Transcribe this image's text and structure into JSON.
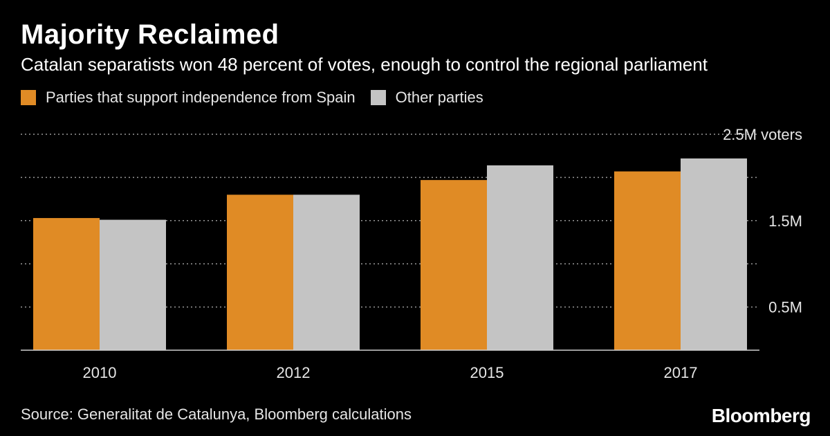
{
  "header": {
    "title": "Majority Reclaimed",
    "subtitle": "Catalan separatists won 48 percent of votes, enough to control the regional parliament"
  },
  "legend": {
    "items": [
      {
        "label": "Parties that support independence from Spain",
        "color": "#e08b25"
      },
      {
        "label": "Other parties",
        "color": "#c4c4c4"
      }
    ]
  },
  "chart_data": {
    "type": "bar",
    "title": "Majority Reclaimed",
    "subtitle": "Catalan separatists won 48 percent of votes, enough to control the regional parliament",
    "categories": [
      "2010",
      "2012",
      "2015",
      "2017"
    ],
    "series": [
      {
        "name": "Parties that support independence from Spain",
        "color": "#e08b25",
        "values": [
          1.53,
          1.8,
          1.97,
          2.07
        ]
      },
      {
        "name": "Other parties",
        "color": "#c4c4c4",
        "values": [
          1.51,
          1.8,
          2.14,
          2.22
        ]
      }
    ],
    "ylim": [
      0,
      2.5
    ],
    "yticks": [
      0.5,
      1.0,
      1.5,
      2.0,
      2.5
    ],
    "ytick_labels": [
      {
        "value": 0.5,
        "label": "0.5M"
      },
      {
        "value": 1.5,
        "label": "1.5M"
      },
      {
        "value": 2.5,
        "label": "2.5M voters"
      }
    ],
    "xlabel": "",
    "ylabel": "",
    "grid": true,
    "legend_position": "top-left"
  },
  "footer": {
    "source": "Source: Generalitat de Catalunya, Bloomberg calculations",
    "brand": "Bloomberg"
  }
}
